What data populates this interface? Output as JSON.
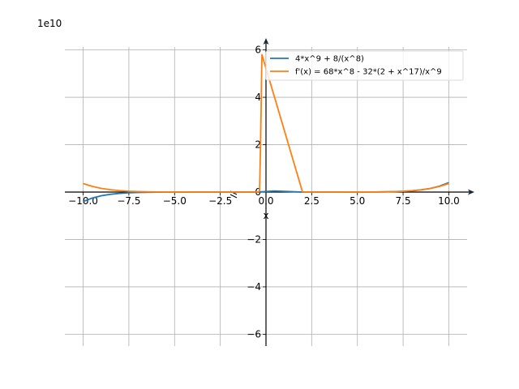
{
  "chart_data": {
    "type": "line",
    "title": "",
    "xlabel": "x",
    "ylabel": "",
    "offset_label": "1e10",
    "xlim": [
      -11.0,
      11.0
    ],
    "ylim": [
      -6.5,
      6.5
    ],
    "y_scale_factor": 10000000000,
    "grid": true,
    "legend_position": "top-right",
    "x_ticks": [
      -10.0,
      -7.5,
      -5.0,
      -2.5,
      0.0,
      2.5,
      5.0,
      7.5,
      10.0
    ],
    "x_tick_labels": [
      "−10.0",
      "−7.5",
      "−5.0",
      "−2.5",
      "0.0",
      "2.5",
      "5.0",
      "7.5",
      "10.0"
    ],
    "y_ticks": [
      -6,
      -4,
      -2,
      0,
      2,
      4,
      6
    ],
    "y_tick_labels": [
      "−6",
      "−4",
      "−2",
      "0",
      "2",
      "4",
      "6"
    ],
    "series": [
      {
        "name": "4*x^9 + 8/(x^8)",
        "color": "#1f77b4",
        "points": [
          [
            -10,
            -0.4
          ],
          [
            -9.5,
            -0.252
          ],
          [
            -9,
            -0.155
          ],
          [
            -8.5,
            -0.0927
          ],
          [
            -8,
            -0.0537
          ],
          [
            -7.5,
            -0.03
          ],
          [
            -7,
            -0.0161
          ],
          [
            -6,
            -0.004
          ],
          [
            -5,
            -0.0008
          ],
          [
            -4,
            0
          ],
          [
            -2,
            0
          ],
          [
            -0.45,
            0
          ],
          [
            0.45,
            0.045
          ],
          [
            2,
            0
          ],
          [
            4,
            0.0001
          ],
          [
            5,
            0.0008
          ],
          [
            6,
            0.004
          ],
          [
            7,
            0.0161
          ],
          [
            7.5,
            0.03
          ],
          [
            8,
            0.0537
          ],
          [
            8.5,
            0.0927
          ],
          [
            9,
            0.155
          ],
          [
            9.5,
            0.252
          ],
          [
            10,
            0.4
          ]
        ]
      },
      {
        "name": "f'(x) = 68*x^8 - 32*(2 + x^17)/x^9",
        "color": "#ff7f0e",
        "points": [
          [
            -10,
            0.36
          ],
          [
            -9.5,
            0.2408
          ],
          [
            -9,
            0.155
          ],
          [
            -8.5,
            0.0987
          ],
          [
            -8,
            0.0604
          ],
          [
            -7.5,
            0.0352
          ],
          [
            -7,
            0.0198
          ],
          [
            -6,
            0.0054
          ],
          [
            -5,
            0.0013
          ],
          [
            -4,
            0.0002
          ],
          [
            -2,
            0
          ],
          [
            -0.45,
            0
          ],
          [
            -0.35,
            0.05
          ],
          [
            -0.3,
            1.9
          ],
          [
            -0.26,
            3.8
          ],
          [
            -0.24,
            5.0
          ],
          [
            -0.22,
            5.8
          ],
          [
            2,
            0
          ],
          [
            4,
            0.0002
          ],
          [
            5,
            0.0013
          ],
          [
            6,
            0.0054
          ],
          [
            7,
            0.0198
          ],
          [
            7.5,
            0.0352
          ],
          [
            8,
            0.0604
          ],
          [
            8.5,
            0.0987
          ],
          [
            9,
            0.155
          ],
          [
            9.5,
            0.2408
          ],
          [
            10,
            0.36
          ]
        ]
      }
    ]
  }
}
